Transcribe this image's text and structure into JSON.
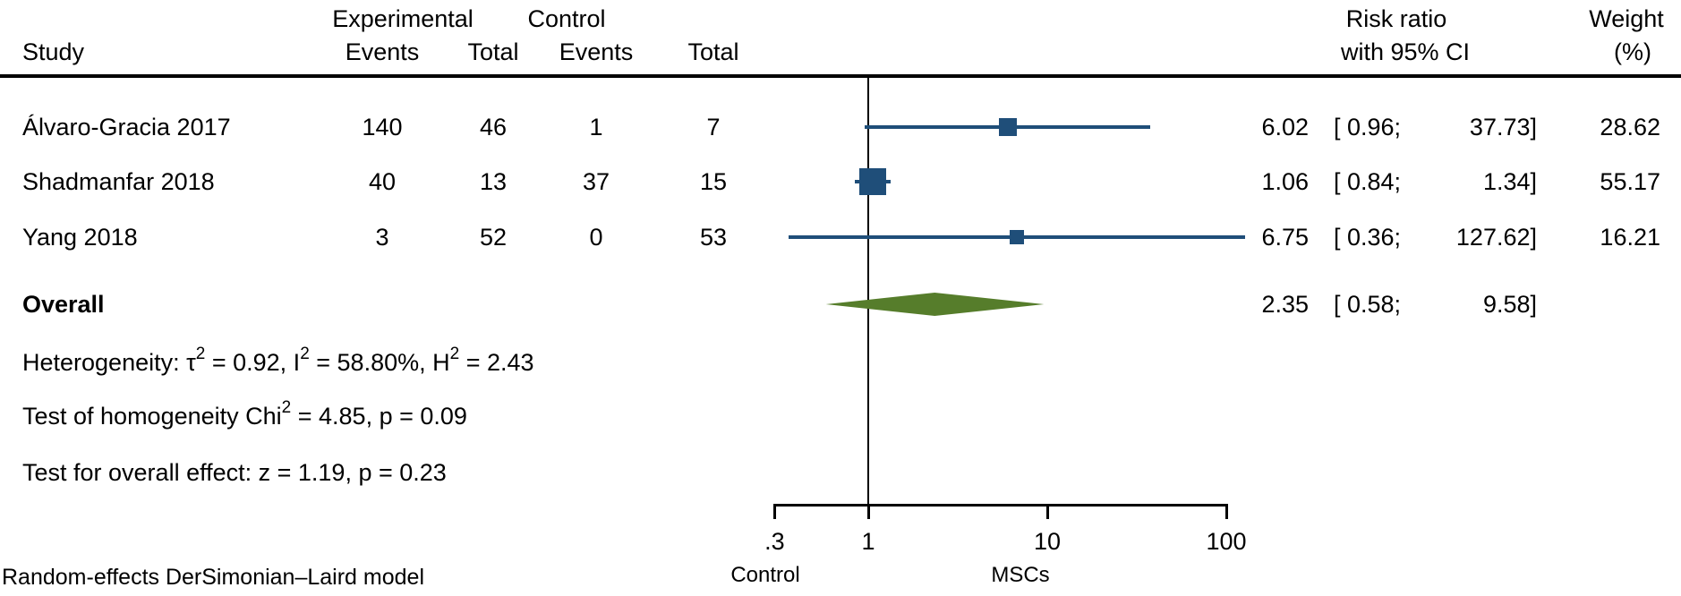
{
  "header": {
    "study": "Study",
    "group_experimental": "Experimental",
    "group_control": "Control",
    "exp_events": "Events",
    "exp_total": "Total",
    "ctrl_events": "Events",
    "ctrl_total": "Total",
    "risk_ratio_line1": "Risk ratio",
    "risk_ratio_line2": "with 95% CI",
    "weight_line1": "Weight",
    "weight_line2": "(%)"
  },
  "table": {
    "rows": [
      {
        "name": "Álvaro-Gracia 2017",
        "exp_events": "140",
        "exp_total": "46",
        "ctrl_events": "1",
        "ctrl_total": "7",
        "rr": "6.02",
        "ci_low": "[ 0.96;",
        "ci_high": "37.73]",
        "weight": "28.62"
      },
      {
        "name": "Shadmanfar 2018",
        "exp_events": "40",
        "exp_total": "13",
        "ctrl_events": "37",
        "ctrl_total": "15",
        "rr": "1.06",
        "ci_low": "[ 0.84;",
        "ci_high": "1.34]",
        "weight": "55.17"
      },
      {
        "name": "Yang 2018",
        "exp_events": "3",
        "exp_total": "52",
        "ctrl_events": "0",
        "ctrl_total": "53",
        "rr": "6.75",
        "ci_low": "[ 0.36;",
        "ci_high": "127.62]",
        "weight": "16.21"
      }
    ],
    "overall_row": {
      "label": "Overall",
      "rr": "2.35",
      "ci_low": "[ 0.58;",
      "ci_high": "9.58]",
      "weight": ""
    }
  },
  "stats": {
    "heterogeneity_parts": [
      "Heterogeneity: τ",
      "2",
      " = 0.92, I",
      "2",
      " = 58.80%, H",
      "2",
      " = 2.43"
    ],
    "homogeneity_parts": [
      "Test of homogeneity Chi",
      "2",
      " = 4.85, p = 0.09"
    ],
    "overall_effect": "Test for overall effect: z = 1.19, p = 0.23"
  },
  "axis": {
    "ticks": [
      {
        "label": ".3",
        "value": 0.3
      },
      {
        "label": "1",
        "value": 1
      },
      {
        "label": "10",
        "value": 10
      },
      {
        "label": "100",
        "value": 100
      }
    ],
    "left_group_label": "Control",
    "right_group_label": "MSCs"
  },
  "footer": "Random-effects DerSimonian–Laird model",
  "colors": {
    "marker": "#1f4e79",
    "ci_line": "#1f4e79",
    "diamond": "#567d2b",
    "axis": "#000000"
  },
  "chart_data": {
    "type": "forest",
    "effect_measure": "Risk ratio",
    "x_scale": "log",
    "x_ticks": [
      0.3,
      1,
      10,
      100
    ],
    "reference_line": 1,
    "axis_group_labels": {
      "left_of_1": "Control",
      "right_of_1": "MSCs"
    },
    "studies": [
      {
        "name": "Álvaro-Gracia 2017",
        "exp_events": 140,
        "exp_total": 46,
        "ctrl_events": 1,
        "ctrl_total": 7,
        "rr": 6.02,
        "ci_low": 0.96,
        "ci_high": 37.73,
        "weight_pct": 28.62
      },
      {
        "name": "Shadmanfar 2018",
        "exp_events": 40,
        "exp_total": 13,
        "ctrl_events": 37,
        "ctrl_total": 15,
        "rr": 1.06,
        "ci_low": 0.84,
        "ci_high": 1.34,
        "weight_pct": 55.17
      },
      {
        "name": "Yang 2018",
        "exp_events": 3,
        "exp_total": 52,
        "ctrl_events": 0,
        "ctrl_total": 53,
        "rr": 6.75,
        "ci_low": 0.36,
        "ci_high": 127.62,
        "weight_pct": 16.21
      }
    ],
    "overall": {
      "rr": 2.35,
      "ci_low": 0.58,
      "ci_high": 9.58
    },
    "heterogeneity": {
      "tau2": 0.92,
      "I2_pct": 58.8,
      "H2": 2.43,
      "chi2": 4.85,
      "p_homogeneity": 0.09
    },
    "overall_test": {
      "z": 1.19,
      "p": 0.23
    },
    "model": "Random-effects DerSimonian–Laird model"
  }
}
